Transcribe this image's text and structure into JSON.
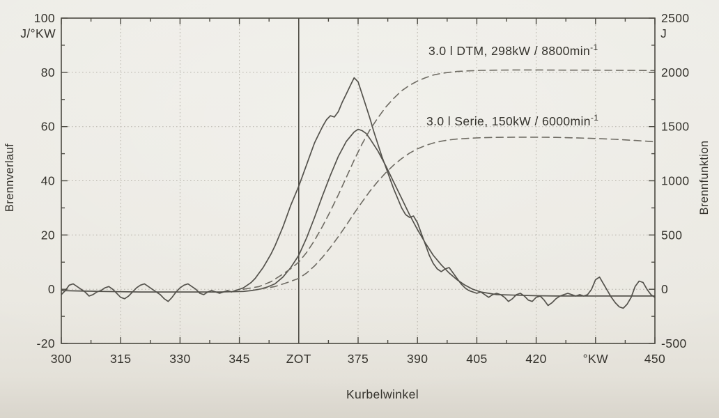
{
  "figure": {
    "background": "#eae8e1",
    "ink": "#34322c",
    "grid_color": "#b6b2a9",
    "solid_curve_color": "#54524c",
    "dashed_curve_color": "#6e6b63"
  },
  "chart_data": {
    "type": "line",
    "xlabel": "Kurbelwinkel",
    "ylabel_left": "Brennverlauf",
    "ylabel_left_unit": "J/°KW",
    "ylabel_right": "Brennfunktion",
    "ylabel_right_unit": "J",
    "xlim": [
      300,
      450
    ],
    "ylim_left": [
      -20,
      100
    ],
    "ylim_right": [
      -500,
      2500
    ],
    "grid": "dotted",
    "zot_x": 360,
    "x_ticks": {
      "values": [
        300,
        315,
        330,
        345,
        360,
        375,
        390,
        405,
        420,
        435,
        450
      ],
      "labels": [
        "300",
        "315",
        "330",
        "345",
        "ZOT",
        "375",
        "390",
        "405",
        "420",
        "°KW",
        "450"
      ],
      "minor_step": 7.5
    },
    "left_ticks": {
      "values": [
        100,
        80,
        60,
        40,
        20,
        0,
        -20
      ],
      "labels": [
        "100",
        "80",
        "60",
        "40",
        "20",
        "0",
        "-20"
      ],
      "minor_step": 10
    },
    "right_ticks": {
      "values": [
        2500,
        2000,
        1500,
        1000,
        500,
        0,
        -500
      ],
      "labels": [
        "2500",
        "2000",
        "1500",
        "1000",
        "500",
        "0",
        "-500"
      ],
      "minor_step": 250
    },
    "annotations": [
      {
        "text": "3.0 l DTM, 298kW / 8800min",
        "sup": "-1"
      },
      {
        "text": "3.0 l Serie, 150kW / 6000min",
        "sup": "-1"
      }
    ],
    "series": [
      {
        "name": "DTM Brennverlauf",
        "axis": "left",
        "style": "solid",
        "points": [
          [
            300,
            -2
          ],
          [
            301,
            -0.5
          ],
          [
            302,
            1.5
          ],
          [
            303,
            2
          ],
          [
            304,
            1
          ],
          [
            305,
            0
          ],
          [
            306,
            -1
          ],
          [
            307,
            -2.5
          ],
          [
            308,
            -2
          ],
          [
            309,
            -1
          ],
          [
            310,
            -0.5
          ],
          [
            311,
            0.5
          ],
          [
            312,
            1
          ],
          [
            313,
            0
          ],
          [
            314,
            -1.5
          ],
          [
            315,
            -3
          ],
          [
            316,
            -3.5
          ],
          [
            317,
            -2.5
          ],
          [
            318,
            -1
          ],
          [
            319,
            0.5
          ],
          [
            320,
            1.5
          ],
          [
            321,
            2
          ],
          [
            322,
            1
          ],
          [
            323,
            0
          ],
          [
            324,
            -1
          ],
          [
            325,
            -2
          ],
          [
            326,
            -3.5
          ],
          [
            327,
            -4.5
          ],
          [
            328,
            -3
          ],
          [
            329,
            -1
          ],
          [
            330,
            0.5
          ],
          [
            331,
            1.5
          ],
          [
            332,
            2
          ],
          [
            333,
            1
          ],
          [
            334,
            0
          ],
          [
            335,
            -1.5
          ],
          [
            336,
            -2
          ],
          [
            337,
            -1
          ],
          [
            338,
            -0.5
          ],
          [
            339,
            -1
          ],
          [
            340,
            -1.5
          ],
          [
            341,
            -1
          ],
          [
            342,
            -0.5
          ],
          [
            343,
            -1
          ],
          [
            344,
            -0.5
          ],
          [
            345,
            0
          ],
          [
            346,
            0.5
          ],
          [
            347,
            1.5
          ],
          [
            348,
            2.5
          ],
          [
            349,
            4
          ],
          [
            350,
            6
          ],
          [
            351,
            8
          ],
          [
            352,
            10.5
          ],
          [
            353,
            13
          ],
          [
            354,
            16
          ],
          [
            355,
            19.5
          ],
          [
            356,
            23
          ],
          [
            357,
            27
          ],
          [
            358,
            31
          ],
          [
            359,
            34.5
          ],
          [
            360,
            38
          ],
          [
            361,
            42
          ],
          [
            362,
            46
          ],
          [
            363,
            50
          ],
          [
            364,
            54
          ],
          [
            365,
            57
          ],
          [
            366,
            60
          ],
          [
            367,
            62.5
          ],
          [
            368,
            64
          ],
          [
            369,
            63.5
          ],
          [
            370,
            65.5
          ],
          [
            371,
            69
          ],
          [
            372,
            72
          ],
          [
            373,
            75
          ],
          [
            374,
            78
          ],
          [
            375,
            76.5
          ],
          [
            376,
            72
          ],
          [
            377,
            67.5
          ],
          [
            378,
            63
          ],
          [
            379,
            58
          ],
          [
            380,
            53.5
          ],
          [
            381,
            49
          ],
          [
            382,
            45
          ],
          [
            383,
            41
          ],
          [
            384,
            37
          ],
          [
            385,
            33.5
          ],
          [
            386,
            30
          ],
          [
            387,
            27.5
          ],
          [
            388,
            26.5
          ],
          [
            389,
            27
          ],
          [
            390,
            24.5
          ],
          [
            391,
            20.5
          ],
          [
            392,
            16.5
          ],
          [
            393,
            12.5
          ],
          [
            394,
            9.5
          ],
          [
            395,
            7.5
          ],
          [
            396,
            6.5
          ],
          [
            397,
            7.5
          ],
          [
            398,
            8
          ],
          [
            399,
            6
          ],
          [
            400,
            4
          ],
          [
            401,
            2
          ],
          [
            402,
            0.5
          ],
          [
            403,
            -0.5
          ],
          [
            404,
            -1
          ],
          [
            405,
            -1.5
          ],
          [
            406,
            -1
          ],
          [
            407,
            -2
          ],
          [
            408,
            -3
          ],
          [
            409,
            -2
          ],
          [
            410,
            -1.5
          ],
          [
            411,
            -2
          ],
          [
            412,
            -3
          ],
          [
            413,
            -4.5
          ],
          [
            414,
            -3.5
          ],
          [
            415,
            -2
          ],
          [
            416,
            -1.5
          ],
          [
            417,
            -2.5
          ],
          [
            418,
            -4
          ],
          [
            419,
            -4.5
          ],
          [
            420,
            -3
          ],
          [
            421,
            -2.5
          ],
          [
            422,
            -4
          ],
          [
            423,
            -6
          ],
          [
            424,
            -5
          ],
          [
            425,
            -3.5
          ],
          [
            426,
            -2.5
          ],
          [
            427,
            -2
          ],
          [
            428,
            -1.5
          ],
          [
            429,
            -2
          ],
          [
            430,
            -2.5
          ],
          [
            431,
            -2
          ],
          [
            432,
            -2.5
          ],
          [
            433,
            -2
          ],
          [
            434,
            0
          ],
          [
            435,
            3.5
          ],
          [
            436,
            4.5
          ],
          [
            437,
            2
          ],
          [
            438,
            -0.5
          ],
          [
            439,
            -3
          ],
          [
            440,
            -5
          ],
          [
            441,
            -6.5
          ],
          [
            442,
            -7
          ],
          [
            443,
            -5.5
          ],
          [
            444,
            -3
          ],
          [
            445,
            1
          ],
          [
            446,
            3
          ],
          [
            447,
            2.5
          ],
          [
            448,
            0
          ],
          [
            449,
            -2
          ],
          [
            450,
            -3
          ]
        ]
      },
      {
        "name": "Serie Brennverlauf",
        "axis": "left",
        "style": "solid",
        "points": [
          [
            300,
            -0.5
          ],
          [
            310,
            -0.8
          ],
          [
            320,
            -1
          ],
          [
            330,
            -1
          ],
          [
            340,
            -1
          ],
          [
            346,
            -0.8
          ],
          [
            348,
            -0.5
          ],
          [
            350,
            0
          ],
          [
            352,
            0.8
          ],
          [
            354,
            2
          ],
          [
            356,
            4.5
          ],
          [
            358,
            8
          ],
          [
            360,
            12.5
          ],
          [
            362,
            19
          ],
          [
            364,
            26.5
          ],
          [
            366,
            34.5
          ],
          [
            368,
            42
          ],
          [
            370,
            49
          ],
          [
            372,
            54.5
          ],
          [
            374,
            58
          ],
          [
            375,
            59
          ],
          [
            376,
            58.5
          ],
          [
            377,
            57.5
          ],
          [
            378,
            55.5
          ],
          [
            380,
            51
          ],
          [
            382,
            45.5
          ],
          [
            384,
            39.5
          ],
          [
            386,
            33.5
          ],
          [
            388,
            27.5
          ],
          [
            390,
            22
          ],
          [
            392,
            17
          ],
          [
            394,
            12.5
          ],
          [
            396,
            9
          ],
          [
            398,
            6
          ],
          [
            400,
            3.5
          ],
          [
            402,
            1.5
          ],
          [
            404,
            0
          ],
          [
            406,
            -1
          ],
          [
            408,
            -1.5
          ],
          [
            410,
            -2
          ],
          [
            415,
            -2.2
          ],
          [
            420,
            -2.4
          ],
          [
            425,
            -2.5
          ],
          [
            430,
            -2.5
          ],
          [
            435,
            -2.5
          ],
          [
            440,
            -2.5
          ],
          [
            445,
            -2.5
          ],
          [
            450,
            -2.5
          ]
        ]
      },
      {
        "name": "DTM Brennfunktion",
        "axis": "right",
        "style": "dashed",
        "points": [
          [
            346,
            0
          ],
          [
            350,
            25
          ],
          [
            353,
            70
          ],
          [
            356,
            140
          ],
          [
            358,
            190
          ],
          [
            360,
            250
          ],
          [
            362,
            340
          ],
          [
            364,
            450
          ],
          [
            366,
            580
          ],
          [
            368,
            720
          ],
          [
            370,
            870
          ],
          [
            372,
            1030
          ],
          [
            374,
            1190
          ],
          [
            376,
            1340
          ],
          [
            378,
            1470
          ],
          [
            380,
            1580
          ],
          [
            382,
            1680
          ],
          [
            384,
            1760
          ],
          [
            386,
            1830
          ],
          [
            388,
            1880
          ],
          [
            390,
            1920
          ],
          [
            392,
            1950
          ],
          [
            394,
            1975
          ],
          [
            396,
            1990
          ],
          [
            398,
            2000
          ],
          [
            400,
            2008
          ],
          [
            403,
            2014
          ],
          [
            406,
            2018
          ],
          [
            410,
            2020
          ],
          [
            415,
            2022
          ],
          [
            420,
            2022
          ],
          [
            425,
            2021
          ],
          [
            430,
            2020
          ],
          [
            435,
            2020
          ],
          [
            440,
            2019
          ],
          [
            445,
            2018
          ],
          [
            450,
            2016
          ]
        ]
      },
      {
        "name": "Serie Brennfunktion",
        "axis": "right",
        "style": "dashed",
        "points": [
          [
            350,
            0
          ],
          [
            354,
            25
          ],
          [
            357,
            60
          ],
          [
            360,
            100
          ],
          [
            362,
            150
          ],
          [
            364,
            215
          ],
          [
            366,
            295
          ],
          [
            368,
            385
          ],
          [
            370,
            485
          ],
          [
            372,
            590
          ],
          [
            374,
            700
          ],
          [
            376,
            805
          ],
          [
            378,
            905
          ],
          [
            380,
            995
          ],
          [
            382,
            1075
          ],
          [
            384,
            1145
          ],
          [
            386,
            1205
          ],
          [
            388,
            1255
          ],
          [
            390,
            1295
          ],
          [
            392,
            1325
          ],
          [
            394,
            1348
          ],
          [
            396,
            1365
          ],
          [
            398,
            1377
          ],
          [
            400,
            1385
          ],
          [
            403,
            1392
          ],
          [
            406,
            1397
          ],
          [
            410,
            1400
          ],
          [
            415,
            1402
          ],
          [
            420,
            1402
          ],
          [
            425,
            1400
          ],
          [
            430,
            1396
          ],
          [
            435,
            1390
          ],
          [
            440,
            1382
          ],
          [
            445,
            1372
          ],
          [
            450,
            1360
          ]
        ]
      }
    ]
  }
}
